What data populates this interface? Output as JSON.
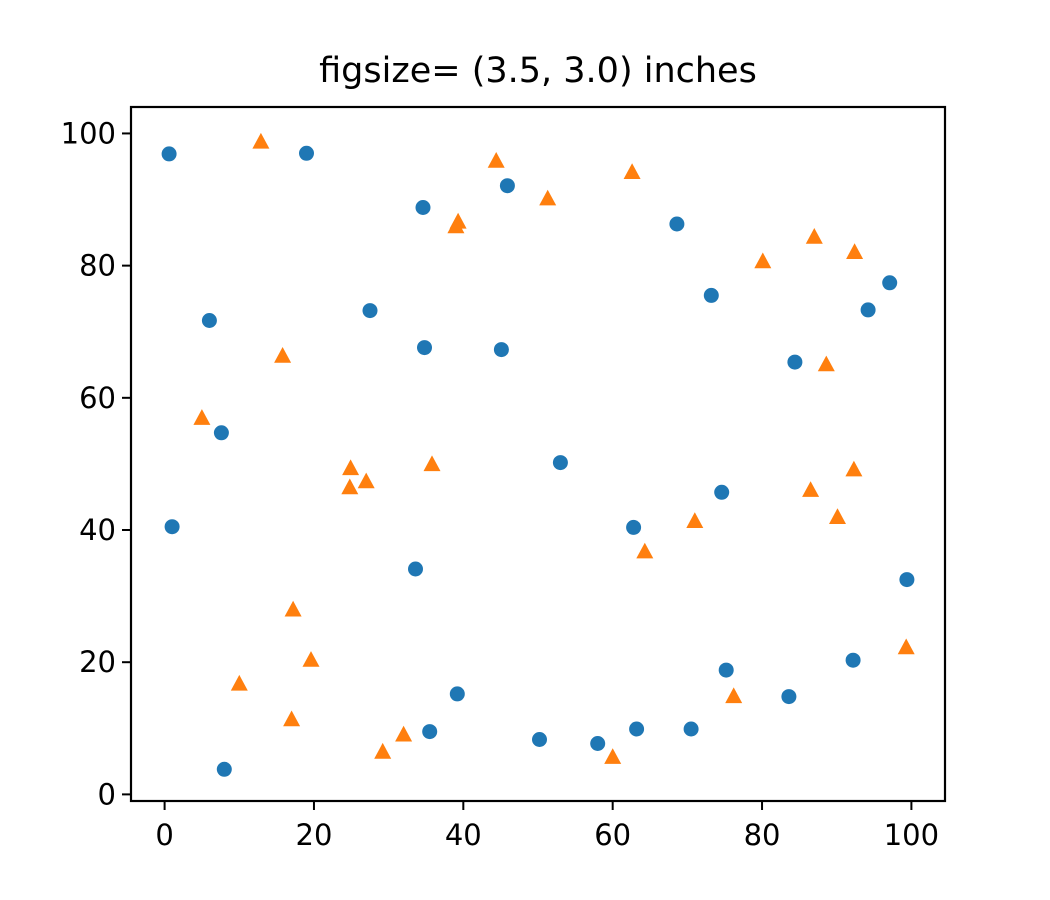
{
  "chart_data": {
    "type": "scatter",
    "title": "figsize= (3.5, 3.0) inches",
    "xlabel": "",
    "ylabel": "",
    "xlim": [
      -4.5,
      104.5
    ],
    "ylim": [
      -1,
      104
    ],
    "xticks": [
      0,
      20,
      40,
      60,
      80,
      100
    ],
    "yticks": [
      0,
      20,
      40,
      60,
      80,
      100
    ],
    "xtick_labels": [
      "0",
      "20",
      "40",
      "60",
      "80",
      "100"
    ],
    "ytick_labels": [
      "0",
      "20",
      "40",
      "60",
      "80",
      "100"
    ],
    "grid": false,
    "legend": false,
    "series": [
      {
        "marker": "circle",
        "color": "#1f77b4",
        "points": [
          [
            0.6,
            96.9
          ],
          [
            19.0,
            97.0
          ],
          [
            34.6,
            88.8
          ],
          [
            45.9,
            92.1
          ],
          [
            68.6,
            86.3
          ],
          [
            6.0,
            71.7
          ],
          [
            27.5,
            73.2
          ],
          [
            34.8,
            67.6
          ],
          [
            45.1,
            67.3
          ],
          [
            73.2,
            75.5
          ],
          [
            84.4,
            65.4
          ],
          [
            94.2,
            73.3
          ],
          [
            97.1,
            77.4
          ],
          [
            7.6,
            54.7
          ],
          [
            1.0,
            40.5
          ],
          [
            53.0,
            50.2
          ],
          [
            62.8,
            40.4
          ],
          [
            74.6,
            45.7
          ],
          [
            33.6,
            34.1
          ],
          [
            99.4,
            32.5
          ],
          [
            39.2,
            15.2
          ],
          [
            35.5,
            9.5
          ],
          [
            50.2,
            8.3
          ],
          [
            58.0,
            7.7
          ],
          [
            63.2,
            9.9
          ],
          [
            70.5,
            9.9
          ],
          [
            75.2,
            18.8
          ],
          [
            83.6,
            14.8
          ],
          [
            92.2,
            20.3
          ],
          [
            8.0,
            3.8
          ]
        ]
      },
      {
        "marker": "triangle",
        "color": "#ff7f0e",
        "points": [
          [
            12.9,
            98.8
          ],
          [
            44.4,
            95.9
          ],
          [
            62.6,
            94.2
          ],
          [
            51.3,
            90.2
          ],
          [
            39.3,
            86.7
          ],
          [
            39.0,
            86.0
          ],
          [
            80.1,
            80.7
          ],
          [
            87.0,
            84.4
          ],
          [
            92.4,
            82.1
          ],
          [
            15.8,
            66.4
          ],
          [
            88.6,
            65.1
          ],
          [
            5.0,
            57.0
          ],
          [
            24.9,
            49.4
          ],
          [
            27.0,
            47.4
          ],
          [
            24.8,
            46.5
          ],
          [
            35.8,
            50.0
          ],
          [
            92.3,
            49.2
          ],
          [
            86.5,
            46.1
          ],
          [
            90.1,
            42.0
          ],
          [
            71.0,
            41.4
          ],
          [
            64.3,
            36.8
          ],
          [
            17.2,
            28.0
          ],
          [
            19.6,
            20.4
          ],
          [
            99.3,
            22.3
          ],
          [
            10.0,
            16.8
          ],
          [
            17.0,
            11.4
          ],
          [
            32.0,
            9.1
          ],
          [
            29.2,
            6.5
          ],
          [
            60.0,
            5.7
          ],
          [
            76.2,
            14.9
          ]
        ]
      }
    ]
  }
}
